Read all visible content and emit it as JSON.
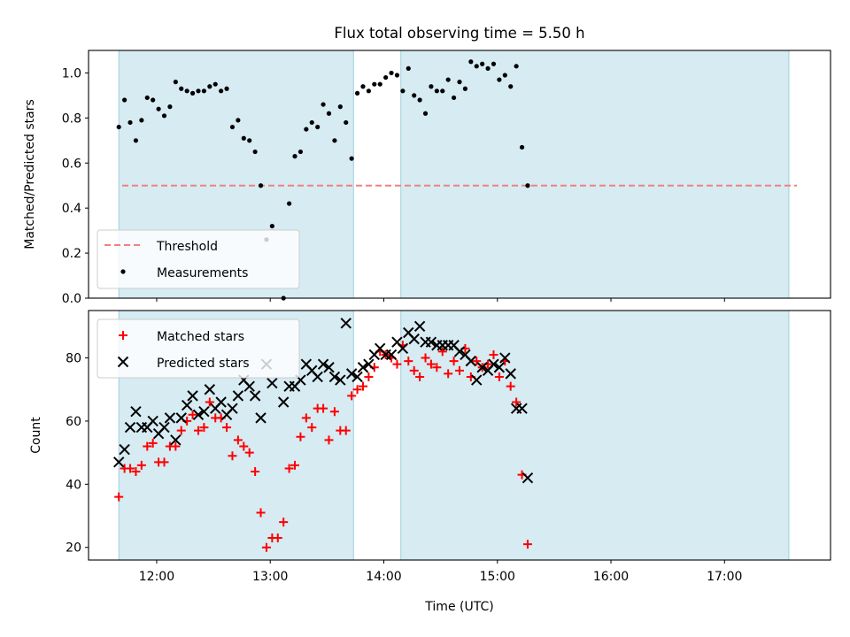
{
  "figure": {
    "title": "Flux total observing time = 5.50 h",
    "xlabel": "Time (UTC)",
    "xticks": [
      "12:00",
      "13:00",
      "14:00",
      "15:00",
      "16:00",
      "17:00"
    ]
  },
  "chart_data": [
    {
      "type": "scatter",
      "title": "Flux total observing time = 5.50 h",
      "xlabel": "Time (UTC)",
      "ylabel": "Matched/Predicted stars",
      "xlim": [
        "11:24",
        "17:56"
      ],
      "ylim": [
        0,
        1.1
      ],
      "yticks": [
        "0.0",
        "0.2",
        "0.4",
        "0.6",
        "0.8",
        "1.0"
      ],
      "shaded_intervals": [
        [
          "11:40",
          "13:44"
        ],
        [
          "14:09",
          "17:34"
        ]
      ],
      "threshold": {
        "name": "Threshold",
        "value": 0.5,
        "color": "#f08080",
        "style": "dashed"
      },
      "legend": {
        "position": "lower-left",
        "entries": [
          "Threshold",
          "Measurements"
        ]
      },
      "series": [
        {
          "name": "Measurements",
          "color": "#000000",
          "marker": "dot",
          "points": [
            [
              "11:40",
              0.76
            ],
            [
              "11:43",
              0.88
            ],
            [
              "11:46",
              0.78
            ],
            [
              "11:49",
              0.7
            ],
            [
              "11:52",
              0.79
            ],
            [
              "11:55",
              0.89
            ],
            [
              "11:58",
              0.88
            ],
            [
              "12:01",
              0.84
            ],
            [
              "12:04",
              0.81
            ],
            [
              "12:07",
              0.85
            ],
            [
              "12:10",
              0.96
            ],
            [
              "12:13",
              0.93
            ],
            [
              "12:16",
              0.92
            ],
            [
              "12:19",
              0.91
            ],
            [
              "12:22",
              0.92
            ],
            [
              "12:25",
              0.92
            ],
            [
              "12:28",
              0.94
            ],
            [
              "12:31",
              0.95
            ],
            [
              "12:34",
              0.92
            ],
            [
              "12:37",
              0.93
            ],
            [
              "12:40",
              0.76
            ],
            [
              "12:43",
              0.79
            ],
            [
              "12:46",
              0.71
            ],
            [
              "12:49",
              0.7
            ],
            [
              "12:52",
              0.65
            ],
            [
              "12:55",
              0.5
            ],
            [
              "12:58",
              0.26
            ],
            [
              "13:01",
              0.32
            ],
            [
              "13:07",
              0.0
            ],
            [
              "13:10",
              0.42
            ],
            [
              "13:13",
              0.63
            ],
            [
              "13:16",
              0.65
            ],
            [
              "13:19",
              0.75
            ],
            [
              "13:22",
              0.78
            ],
            [
              "13:25",
              0.76
            ],
            [
              "13:28",
              0.86
            ],
            [
              "13:31",
              0.82
            ],
            [
              "13:34",
              0.7
            ],
            [
              "13:37",
              0.85
            ],
            [
              "13:40",
              0.78
            ],
            [
              "13:43",
              0.62
            ],
            [
              "13:46",
              0.91
            ],
            [
              "13:49",
              0.94
            ],
            [
              "13:52",
              0.92
            ],
            [
              "13:55",
              0.95
            ],
            [
              "13:58",
              0.95
            ],
            [
              "14:01",
              0.98
            ],
            [
              "14:04",
              1.0
            ],
            [
              "14:07",
              0.99
            ],
            [
              "14:10",
              0.92
            ],
            [
              "14:13",
              1.02
            ],
            [
              "14:16",
              0.9
            ],
            [
              "14:19",
              0.88
            ],
            [
              "14:22",
              0.82
            ],
            [
              "14:25",
              0.94
            ],
            [
              "14:28",
              0.92
            ],
            [
              "14:31",
              0.92
            ],
            [
              "14:34",
              0.97
            ],
            [
              "14:37",
              0.89
            ],
            [
              "14:40",
              0.96
            ],
            [
              "14:43",
              0.93
            ],
            [
              "14:46",
              1.05
            ],
            [
              "14:49",
              1.03
            ],
            [
              "14:52",
              1.04
            ],
            [
              "14:55",
              1.02
            ],
            [
              "14:58",
              1.04
            ],
            [
              "15:01",
              0.97
            ],
            [
              "15:04",
              0.99
            ],
            [
              "15:07",
              0.94
            ],
            [
              "15:10",
              1.03
            ],
            [
              "15:13",
              0.67
            ],
            [
              "15:16",
              0.5
            ]
          ]
        }
      ]
    },
    {
      "type": "scatter",
      "xlabel": "Time (UTC)",
      "ylabel": "Count",
      "xlim": [
        "11:24",
        "17:56"
      ],
      "ylim": [
        16,
        95
      ],
      "yticks": [
        "20",
        "40",
        "60",
        "80"
      ],
      "shaded_intervals": [
        [
          "11:40",
          "13:44"
        ],
        [
          "14:09",
          "17:34"
        ]
      ],
      "legend": {
        "position": "upper-left",
        "entries": [
          "Matched stars",
          "Predicted stars"
        ]
      },
      "series": [
        {
          "name": "Matched stars",
          "color": "#ff0000",
          "marker": "plus",
          "points": [
            [
              "11:40",
              36
            ],
            [
              "11:43",
              45
            ],
            [
              "11:46",
              45
            ],
            [
              "11:49",
              44
            ],
            [
              "11:52",
              46
            ],
            [
              "11:55",
              52
            ],
            [
              "11:58",
              53
            ],
            [
              "12:01",
              47
            ],
            [
              "12:04",
              47
            ],
            [
              "12:07",
              52
            ],
            [
              "12:10",
              52
            ],
            [
              "12:13",
              57
            ],
            [
              "12:16",
              60
            ],
            [
              "12:19",
              62
            ],
            [
              "12:22",
              57
            ],
            [
              "12:25",
              58
            ],
            [
              "12:28",
              66
            ],
            [
              "12:31",
              61
            ],
            [
              "12:34",
              61
            ],
            [
              "12:37",
              58
            ],
            [
              "12:40",
              49
            ],
            [
              "12:43",
              54
            ],
            [
              "12:46",
              52
            ],
            [
              "12:49",
              50
            ],
            [
              "12:52",
              44
            ],
            [
              "12:55",
              31
            ],
            [
              "12:58",
              20
            ],
            [
              "13:01",
              23
            ],
            [
              "13:04",
              23
            ],
            [
              "13:07",
              28
            ],
            [
              "13:10",
              45
            ],
            [
              "13:13",
              46
            ],
            [
              "13:16",
              55
            ],
            [
              "13:19",
              61
            ],
            [
              "13:22",
              58
            ],
            [
              "13:25",
              64
            ],
            [
              "13:28",
              64
            ],
            [
              "13:31",
              54
            ],
            [
              "13:34",
              63
            ],
            [
              "13:37",
              57
            ],
            [
              "13:40",
              57
            ],
            [
              "13:43",
              68
            ],
            [
              "13:46",
              70
            ],
            [
              "13:49",
              71
            ],
            [
              "13:52",
              74
            ],
            [
              "13:55",
              77
            ],
            [
              "13:58",
              82
            ],
            [
              "14:01",
              81
            ],
            [
              "14:04",
              80
            ],
            [
              "14:07",
              78
            ],
            [
              "14:10",
              84
            ],
            [
              "14:13",
              79
            ],
            [
              "14:16",
              76
            ],
            [
              "14:19",
              74
            ],
            [
              "14:22",
              80
            ],
            [
              "14:25",
              78
            ],
            [
              "14:28",
              77
            ],
            [
              "14:31",
              82
            ],
            [
              "14:34",
              75
            ],
            [
              "14:37",
              79
            ],
            [
              "14:40",
              76
            ],
            [
              "14:43",
              83
            ],
            [
              "14:46",
              74
            ],
            [
              "14:49",
              79
            ],
            [
              "14:52",
              77
            ],
            [
              "14:55",
              78
            ],
            [
              "14:58",
              81
            ],
            [
              "15:01",
              74
            ],
            [
              "15:04",
              79
            ],
            [
              "15:07",
              71
            ],
            [
              "15:10",
              66
            ],
            [
              "15:13",
              43
            ],
            [
              "15:16",
              21
            ]
          ]
        },
        {
          "name": "Predicted stars",
          "color": "#000000",
          "marker": "x",
          "points": [
            [
              "11:40",
              47
            ],
            [
              "11:43",
              51
            ],
            [
              "11:46",
              58
            ],
            [
              "11:49",
              63
            ],
            [
              "11:52",
              58
            ],
            [
              "11:55",
              58
            ],
            [
              "11:58",
              60
            ],
            [
              "12:01",
              56
            ],
            [
              "12:04",
              58
            ],
            [
              "12:07",
              61
            ],
            [
              "12:10",
              54
            ],
            [
              "12:13",
              61
            ],
            [
              "12:16",
              65
            ],
            [
              "12:19",
              68
            ],
            [
              "12:22",
              62
            ],
            [
              "12:25",
              63
            ],
            [
              "12:28",
              70
            ],
            [
              "12:31",
              64
            ],
            [
              "12:34",
              66
            ],
            [
              "12:37",
              62
            ],
            [
              "12:40",
              64
            ],
            [
              "12:43",
              68
            ],
            [
              "12:46",
              73
            ],
            [
              "12:49",
              71
            ],
            [
              "12:52",
              68
            ],
            [
              "12:55",
              61
            ],
            [
              "12:58",
              78
            ],
            [
              "13:01",
              72
            ],
            [
              "13:07",
              66
            ],
            [
              "13:10",
              71
            ],
            [
              "13:13",
              71
            ],
            [
              "13:16",
              73
            ],
            [
              "13:19",
              78
            ],
            [
              "13:22",
              76
            ],
            [
              "13:25",
              74
            ],
            [
              "13:28",
              78
            ],
            [
              "13:31",
              77
            ],
            [
              "13:34",
              74
            ],
            [
              "13:37",
              73
            ],
            [
              "13:40",
              91
            ],
            [
              "13:43",
              75
            ],
            [
              "13:46",
              74
            ],
            [
              "13:49",
              77
            ],
            [
              "13:52",
              78
            ],
            [
              "13:55",
              81
            ],
            [
              "13:58",
              83
            ],
            [
              "14:01",
              81
            ],
            [
              "14:04",
              81
            ],
            [
              "14:07",
              85
            ],
            [
              "14:10",
              83
            ],
            [
              "14:13",
              88
            ],
            [
              "14:16",
              86
            ],
            [
              "14:19",
              90
            ],
            [
              "14:22",
              85
            ],
            [
              "14:25",
              85
            ],
            [
              "14:28",
              84
            ],
            [
              "14:31",
              84
            ],
            [
              "14:34",
              84
            ],
            [
              "14:37",
              84
            ],
            [
              "14:40",
              82
            ],
            [
              "14:43",
              81
            ],
            [
              "14:46",
              79
            ],
            [
              "14:49",
              73
            ],
            [
              "14:52",
              77
            ],
            [
              "14:55",
              76
            ],
            [
              "14:58",
              78
            ],
            [
              "15:01",
              77
            ],
            [
              "15:04",
              80
            ],
            [
              "15:07",
              75
            ],
            [
              "15:10",
              64
            ],
            [
              "15:13",
              64
            ],
            [
              "15:16",
              42
            ]
          ]
        }
      ]
    }
  ]
}
